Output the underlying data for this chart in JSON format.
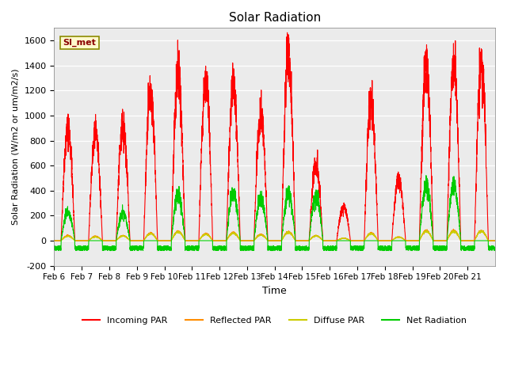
{
  "title": "Solar Radiation",
  "xlabel": "Time",
  "ylabel": "Solar Radiation (W/m2 or um/m2/s)",
  "ylim": [
    -200,
    1700
  ],
  "yticks": [
    -200,
    0,
    200,
    400,
    600,
    800,
    1000,
    1200,
    1400,
    1600
  ],
  "x_labels": [
    "Feb 6",
    "Feb 7",
    "Feb 8",
    "Feb 9",
    "Feb 10",
    "Feb 11",
    "Feb 12",
    "Feb 13",
    "Feb 14",
    "Feb 15",
    "Feb 16",
    "Feb 17",
    "Feb 18",
    "Feb 19",
    "Feb 20",
    "Feb 21"
  ],
  "watermark": "SI_met",
  "colors": {
    "incoming": "#FF0000",
    "reflected": "#FF8C00",
    "diffuse": "#CCCC00",
    "net": "#00CC00",
    "plot_bg": "#EBEBEB"
  },
  "legend_labels": [
    "Incoming PAR",
    "Reflected PAR",
    "Diffuse PAR",
    "Net Radiation"
  ],
  "n_days": 16,
  "incoming_peaks": [
    900,
    840,
    920,
    1175,
    1350,
    1310,
    1250,
    1000,
    1450,
    600,
    270,
    1090,
    490,
    1400,
    1400,
    1390
  ],
  "net_peaks": [
    230,
    0,
    220,
    0,
    360,
    0,
    380,
    340,
    380,
    355,
    0,
    0,
    0,
    440,
    450,
    0
  ],
  "reflected_peaks": [
    40,
    35,
    40,
    60,
    75,
    55,
    65,
    50,
    70,
    40,
    20,
    60,
    30,
    80,
    80,
    80
  ],
  "diffuse_peaks": [
    35,
    30,
    38,
    55,
    70,
    50,
    60,
    45,
    65,
    38,
    18,
    55,
    28,
    75,
    75,
    75
  ]
}
